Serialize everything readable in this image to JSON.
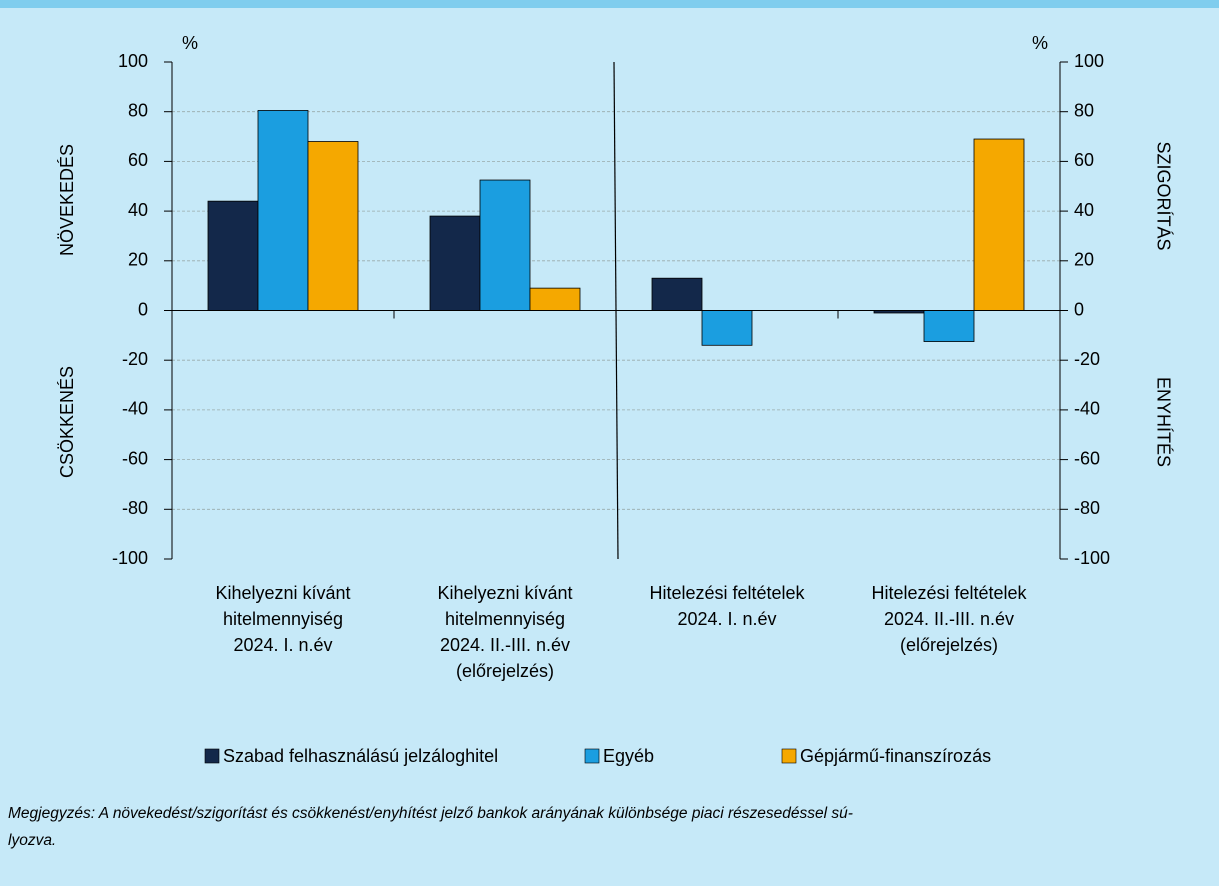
{
  "chart_data": {
    "type": "bar",
    "categories": [
      "Kihelyezni kívánt\nhitelmennyiség\n2024. I. n.év",
      "Kihelyezni kívánt\nhitelmennyiség\n2024. II.-III. n.év\n(előrejelzés)",
      "Hitelezési feltételek\n2024. I. n.év",
      "Hitelezési feltételek\n2024. II.-III. n.év\n(előrejelzés)"
    ],
    "series": [
      {
        "name": "Szabad felhasználású jelzáloghitel",
        "color": "#13284a",
        "values": [
          44,
          38,
          13,
          -1
        ]
      },
      {
        "name": "Egyéb",
        "color": "#1b9ee0",
        "values": [
          80.5,
          52.5,
          -14,
          -12.5
        ]
      },
      {
        "name": "Gépjármű-finanszírozás",
        "color": "#f5a800",
        "values": [
          68,
          9,
          0,
          69
        ]
      }
    ],
    "ylim": [
      -100,
      100
    ],
    "yticks": [
      -100,
      -80,
      -60,
      -40,
      -20,
      0,
      20,
      40,
      60,
      80,
      100
    ],
    "y2lim": [
      -100,
      100
    ],
    "y2ticks": [
      -100,
      -80,
      -60,
      -40,
      -20,
      0,
      20,
      40,
      60,
      80,
      100
    ],
    "y_unit": "%",
    "y2_unit": "%",
    "left_labels": [
      "NÖVEKEDÉS",
      "CSÖKKENÉS"
    ],
    "right_labels": [
      "SZIGORÍTÁS",
      "ENYHÍTÉS"
    ],
    "grid": true,
    "legend": "bottom",
    "note": "Megjegyzés: A növekedést/szigorítást és csökkenést/enyhítést jelző bankok arányának különbsége piaci részesedéssel sú-\nlyozva."
  }
}
